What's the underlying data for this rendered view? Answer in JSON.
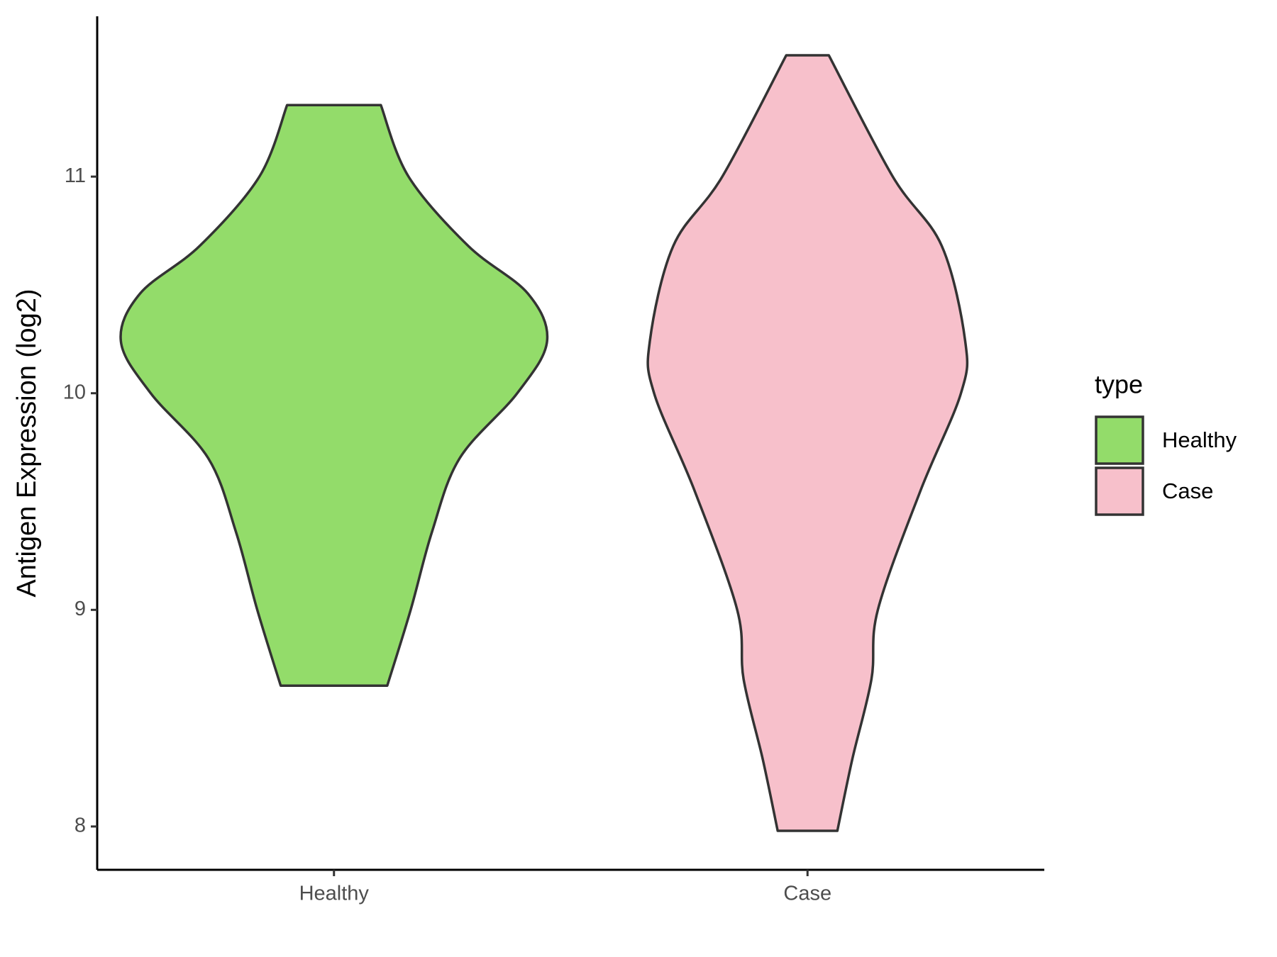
{
  "chart_data": {
    "type": "violin",
    "y_label": "Antigen Expression (log2)",
    "legend_title": "type",
    "legend": "right",
    "categories": [
      "Healthy",
      "Case"
    ],
    "series": [
      {
        "name": "Healthy",
        "color": "#93dc6a",
        "y": [
          11.33,
          11.0,
          10.68,
          10.46,
          10.24,
          10.0,
          9.7,
          9.36,
          9.0,
          8.65
        ],
        "density": [
          0.22,
          0.35,
          0.63,
          0.91,
          1.0,
          0.86,
          0.59,
          0.46,
          0.36,
          0.25
        ]
      },
      {
        "name": "Case",
        "color": "#f7c0cb",
        "y": [
          11.56,
          11.0,
          10.68,
          10.24,
          10.0,
          9.55,
          9.0,
          8.68,
          8.31,
          7.98
        ],
        "density": [
          0.1,
          0.4,
          0.63,
          0.74,
          0.72,
          0.53,
          0.33,
          0.3,
          0.21,
          0.14
        ]
      }
    ],
    "ylim": [
      7.8,
      11.74
    ],
    "yticks": [
      8,
      9,
      10,
      11
    ]
  }
}
